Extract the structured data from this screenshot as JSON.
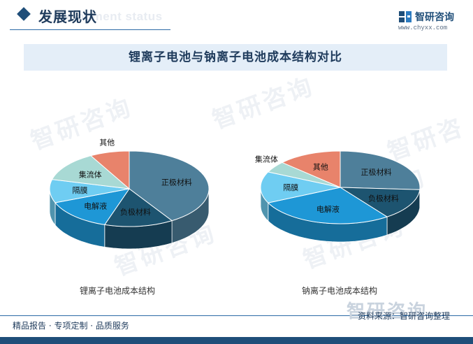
{
  "header": {
    "section_title": "发展现状",
    "section_sub": "Development status",
    "brand_name": "智研咨询",
    "brand_url": "www.chyxx.com"
  },
  "title": "锂离子电池与钠离子电池成本结构对比",
  "footer": {
    "left": "精品报告 · 专项定制 · 品质服务",
    "right": "资料来源：智研咨询整理",
    "watermark": "智研咨询"
  },
  "watermark_text": "智研咨询",
  "colors": {
    "正极材料": "#4e7f9a",
    "负极材料": "#1d5470",
    "电解液": "#1e97d6",
    "隔膜": "#6fcdf2",
    "集流体": "#a8d9d4",
    "其他": "#e8836b",
    "accent": "#1f4e79"
  },
  "chart_data": [
    {
      "type": "pie",
      "title": "锂离子电池成本结构",
      "categories": [
        "正极材料",
        "负极材料",
        "电解液",
        "隔膜",
        "集流体",
        "其他"
      ],
      "values": [
        41,
        14,
        14,
        10,
        13,
        8
      ]
    },
    {
      "type": "pie",
      "title": "钠离子电池成本结构",
      "categories": [
        "正极材料",
        "负极材料",
        "电解液",
        "隔膜",
        "集流体",
        "其他"
      ],
      "values": [
        26,
        14,
        28,
        14,
        5,
        13
      ]
    }
  ]
}
